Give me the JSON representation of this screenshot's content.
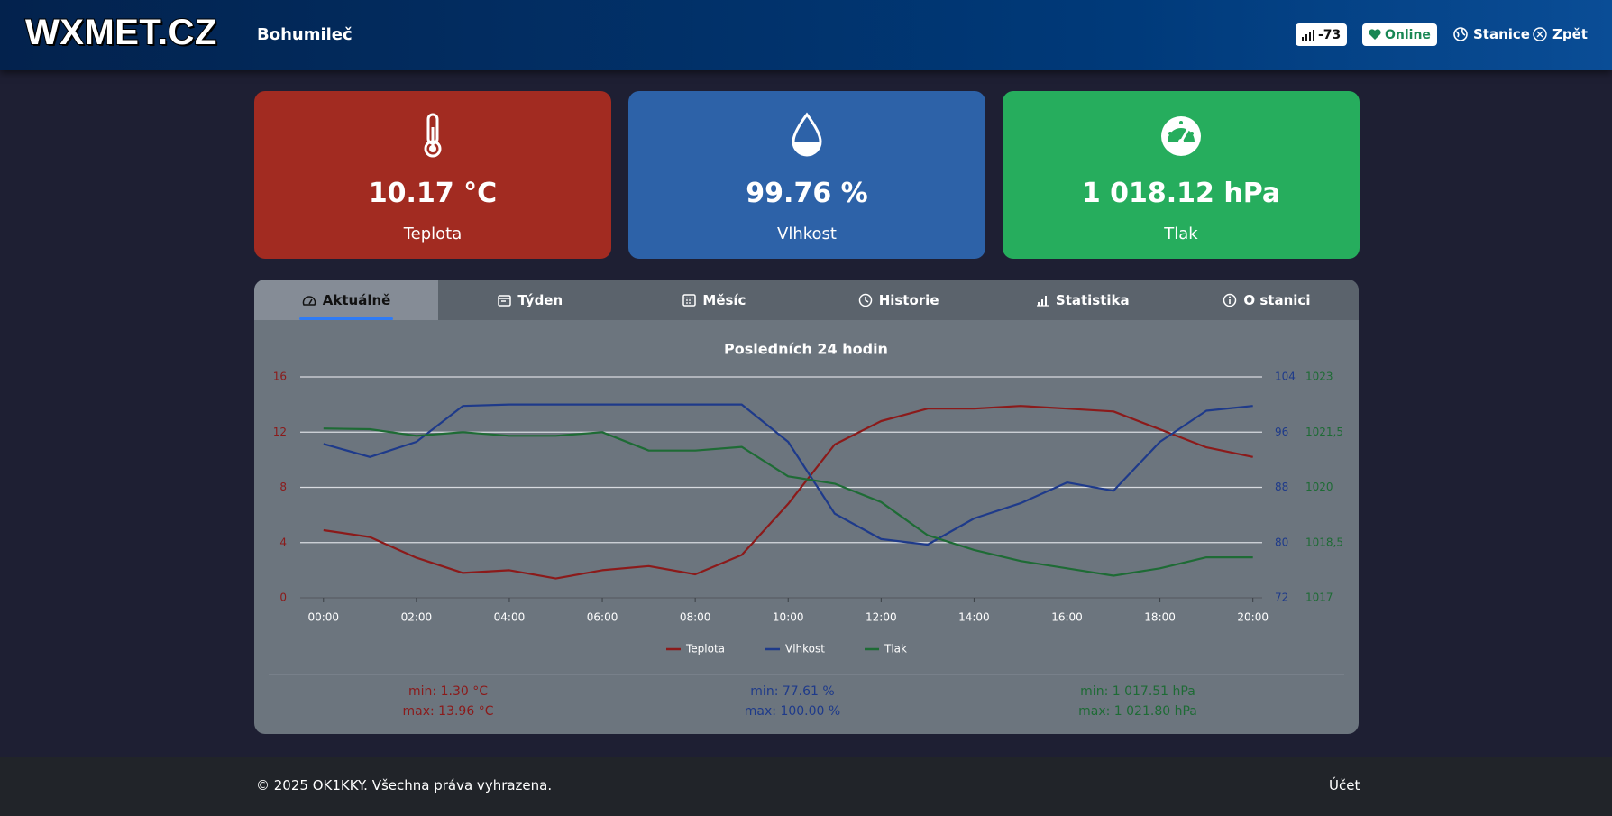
{
  "header": {
    "logo": "WXMET.CZ",
    "station": "Bohumileč",
    "signal": "-73",
    "status": "Online",
    "nav": [
      "Stanice",
      "Zpět"
    ]
  },
  "cards": [
    {
      "value": "10.17 °C",
      "label": "Teplota"
    },
    {
      "value": "99.76 %",
      "label": "Vlhkost"
    },
    {
      "value": "1 018.12 hPa",
      "label": "Tlak"
    }
  ],
  "tabs": [
    "Aktuálně",
    "Týden",
    "Měsíc",
    "Historie",
    "Statistika",
    "O stanici"
  ],
  "chart_data": {
    "type": "line",
    "title": "Posledních 24 hodin",
    "x": [
      0,
      1,
      2,
      3,
      4,
      5,
      6,
      7,
      8,
      9,
      10,
      11,
      12,
      13,
      14,
      15,
      16,
      17,
      18,
      19,
      20
    ],
    "xlim": [
      -0.5,
      20.2
    ],
    "xticks": [
      {
        "value": 0,
        "label": "00:00"
      },
      {
        "value": 2,
        "label": "02:00"
      },
      {
        "value": 4,
        "label": "04:00"
      },
      {
        "value": 6,
        "label": "06:00"
      },
      {
        "value": 8,
        "label": "08:00"
      },
      {
        "value": 10,
        "label": "10:00"
      },
      {
        "value": 12,
        "label": "12:00"
      },
      {
        "value": 14,
        "label": "14:00"
      },
      {
        "value": 16,
        "label": "16:00"
      },
      {
        "value": 18,
        "label": "18:00"
      },
      {
        "value": 20,
        "label": "20:00"
      }
    ],
    "ylim": [
      0,
      16
    ],
    "yticks": [
      0,
      4,
      8,
      12,
      16
    ],
    "y2lim": [
      72,
      104
    ],
    "y2ticks": [
      72,
      80,
      88,
      96,
      104
    ],
    "y3lim": [
      1017,
      1023
    ],
    "y3ticks": [
      1017,
      {
        "value": 1018.5,
        "label": "1018,5"
      },
      1020,
      {
        "value": 1021.5,
        "label": "1021,5"
      },
      1023
    ],
    "grid": true,
    "legend": "bottom",
    "series": [
      {
        "name": "Teplota",
        "color": "#8b1a1a",
        "axis": "y",
        "values": [
          4.9,
          4.4,
          2.9,
          1.8,
          2.0,
          1.4,
          2.0,
          2.3,
          1.7,
          3.1,
          6.8,
          11.1,
          12.8,
          13.7,
          13.7,
          13.9,
          13.7,
          13.5,
          12.2,
          10.9,
          10.2
        ]
      },
      {
        "name": "Vlhkost",
        "color": "#1e3a8a",
        "axis": "y2",
        "values": [
          94.3,
          92.4,
          94.6,
          99.8,
          100,
          100,
          100,
          100,
          100,
          100,
          94.6,
          84.2,
          80.5,
          79.7,
          83.5,
          85.7,
          88.7,
          87.5,
          94.6,
          99.1,
          99.8
        ]
      },
      {
        "name": "Tlak",
        "color": "#1e6b35",
        "axis": "y3",
        "values": [
          1021.6,
          1021.58,
          1021.4,
          1021.5,
          1021.4,
          1021.4,
          1021.5,
          1021.0,
          1021.0,
          1021.1,
          1020.3,
          1020.1,
          1019.6,
          1018.7,
          1018.3,
          1018.0,
          1017.8,
          1017.6,
          1017.8,
          1018.1,
          1018.1
        ]
      }
    ]
  },
  "stats": [
    {
      "min": "min: 1.30 °C",
      "max": "max: 13.96 °C"
    },
    {
      "min": "min: 77.61 %",
      "max": "max: 100.00 %"
    },
    {
      "min": "min: 1 017.51 hPa",
      "max": "max: 1 021.80 hPa"
    }
  ],
  "footer": {
    "copyright": "© 2025 OK1KKY. Všechna práva vyhrazena.",
    "account": "Účet"
  }
}
